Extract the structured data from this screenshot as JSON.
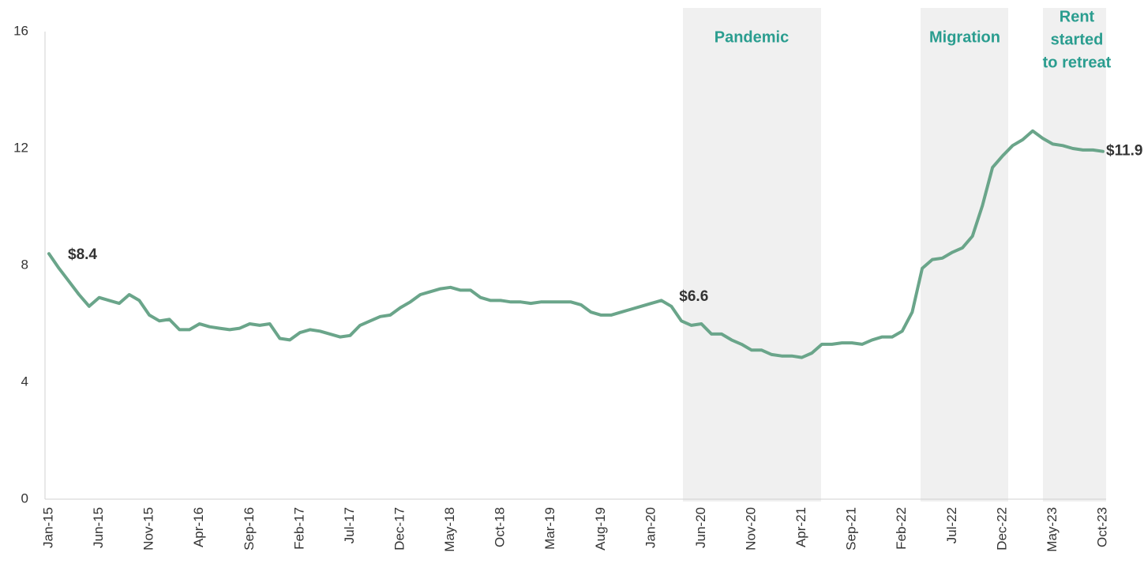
{
  "chart_data": {
    "type": "line",
    "categories": [
      "Jan-15",
      null,
      null,
      null,
      null,
      "Jun-15",
      null,
      null,
      null,
      null,
      "Nov-15",
      null,
      null,
      null,
      null,
      "Apr-16",
      null,
      null,
      null,
      null,
      "Sep-16",
      null,
      null,
      null,
      null,
      "Feb-17",
      null,
      null,
      null,
      null,
      "Jul-17",
      null,
      null,
      null,
      null,
      "Dec-17",
      null,
      null,
      null,
      null,
      "May-18",
      null,
      null,
      null,
      null,
      "Oct-18",
      null,
      null,
      null,
      null,
      "Mar-19",
      null,
      null,
      null,
      null,
      "Aug-19",
      null,
      null,
      null,
      null,
      "Jan-20",
      null,
      null,
      null,
      null,
      "Jun-20",
      null,
      null,
      null,
      null,
      "Nov-20",
      null,
      null,
      null,
      null,
      "Apr-21",
      null,
      null,
      null,
      null,
      "Sep-21",
      null,
      null,
      null,
      null,
      "Feb-22",
      null,
      null,
      null,
      null,
      "Jul-22",
      null,
      null,
      null,
      null,
      "Dec-22",
      null,
      null,
      null,
      null,
      "May-23",
      null,
      null,
      null,
      null,
      "Oct-23"
    ],
    "values": [
      8.4,
      7.9,
      7.45,
      7.0,
      6.6,
      6.9,
      6.8,
      6.7,
      7.0,
      6.8,
      6.3,
      6.1,
      6.15,
      5.8,
      5.8,
      6.0,
      5.9,
      5.85,
      5.8,
      5.85,
      6.0,
      5.95,
      6.0,
      5.5,
      5.45,
      5.7,
      5.8,
      5.75,
      5.65,
      5.55,
      5.6,
      5.95,
      6.1,
      6.25,
      6.3,
      6.55,
      6.75,
      7.0,
      7.1,
      7.2,
      7.25,
      7.15,
      7.15,
      6.9,
      6.8,
      6.8,
      6.75,
      6.75,
      6.7,
      6.75,
      6.75,
      6.75,
      6.75,
      6.65,
      6.4,
      6.3,
      6.3,
      6.4,
      6.5,
      6.6,
      6.7,
      6.8,
      6.6,
      6.1,
      5.95,
      6.0,
      5.65,
      5.65,
      5.45,
      5.3,
      5.1,
      5.1,
      4.95,
      4.9,
      4.9,
      4.85,
      5.0,
      5.3,
      5.3,
      5.35,
      5.35,
      5.3,
      5.45,
      5.55,
      5.55,
      5.75,
      6.4,
      7.9,
      8.2,
      8.25,
      8.45,
      8.6,
      9.0,
      10.05,
      11.35,
      11.75,
      12.1,
      12.3,
      12.6,
      12.35,
      12.15,
      12.1,
      12.0,
      11.95,
      11.95,
      11.9
    ],
    "value_labels": [
      "$8.4",
      null,
      null,
      null,
      null,
      null,
      null,
      null,
      null,
      null,
      null,
      null,
      null,
      null,
      null,
      null,
      null,
      null,
      null,
      null,
      null,
      null,
      null,
      null,
      null,
      null,
      null,
      null,
      null,
      null,
      null,
      null,
      null,
      null,
      null,
      null,
      null,
      null,
      null,
      null,
      null,
      null,
      null,
      null,
      null,
      null,
      null,
      null,
      null,
      null,
      null,
      null,
      null,
      null,
      null,
      null,
      null,
      null,
      null,
      null,
      null,
      null,
      "$6.6",
      null,
      null,
      null,
      null,
      null,
      null,
      null,
      null,
      null,
      null,
      null,
      null,
      null,
      null,
      null,
      null,
      null,
      null,
      null,
      null,
      null,
      null,
      null,
      null,
      null,
      null,
      null,
      null,
      null,
      null,
      null,
      null,
      null,
      null,
      null,
      null,
      null,
      null,
      null,
      null,
      null,
      null,
      "$11.9"
    ],
    "color": "#6aa58a",
    "ylim": [
      0,
      16
    ],
    "yticks": [
      0,
      4,
      8,
      12,
      16
    ],
    "annotations": [
      {
        "lines": [
          "Pandemic"
        ]
      },
      {
        "lines": [
          "Migration"
        ]
      },
      {
        "lines": [
          "Rent",
          "started",
          "to retreat"
        ]
      }
    ]
  }
}
